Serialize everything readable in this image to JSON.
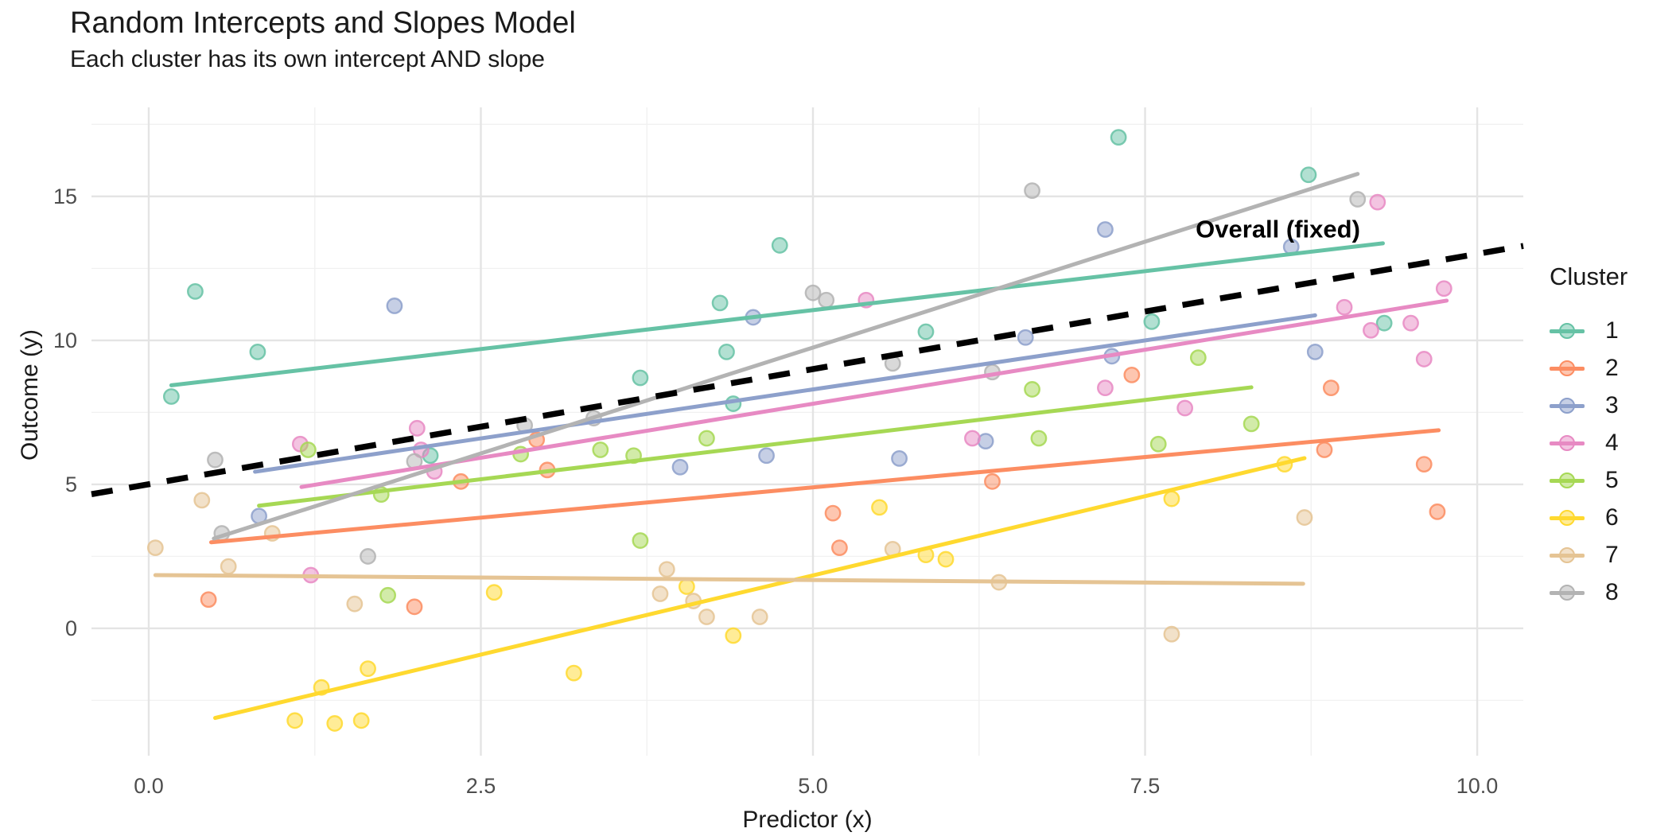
{
  "chart_data": {
    "type": "scatter",
    "title": "Random Intercepts and Slopes Model",
    "subtitle": "Each cluster has its own intercept AND slope",
    "xlabel": "Predictor (x)",
    "ylabel": "Outcome (y)",
    "xlim": [
      -0.431,
      10.347
    ],
    "ylim": [
      -4.42,
      18.09
    ],
    "grid": "on",
    "x_ticks": [
      0.0,
      2.5,
      5.0,
      7.5,
      10.0
    ],
    "x_tick_labels": [
      "0.0",
      "2.5",
      "5.0",
      "7.5",
      "10.0"
    ],
    "y_ticks": [
      0,
      5,
      10,
      15
    ],
    "y_tick_labels": [
      "0",
      "5",
      "10",
      "15"
    ],
    "x_minor_ticks": [
      1.25,
      3.75,
      6.25,
      8.75
    ],
    "y_minor_ticks": [
      -2.5,
      2.5,
      7.5,
      12.5,
      17.5
    ],
    "legend_title": "Cluster",
    "legend_position": "right",
    "annotation": {
      "text": "Overall (fixed)",
      "x": 8.5,
      "y": 13.85,
      "color": "#000000"
    },
    "overall_line": {
      "name": "Overall (fixed)",
      "color": "#000000",
      "style": "dashed",
      "x": [
        -0.431,
        10.347
      ],
      "y": [
        4.66,
        13.28
      ]
    },
    "series": [
      {
        "name": "1",
        "color": "#66C2A5",
        "line": {
          "x": [
            0.17,
            9.29
          ],
          "y": [
            8.44,
            13.37
          ]
        },
        "points": [
          [
            0.17,
            8.05
          ],
          [
            0.35,
            11.7
          ],
          [
            0.82,
            9.6
          ],
          [
            2.12,
            6.0
          ],
          [
            3.7,
            8.7
          ],
          [
            4.3,
            11.3
          ],
          [
            4.35,
            9.6
          ],
          [
            4.4,
            7.8
          ],
          [
            4.75,
            13.3
          ],
          [
            5.85,
            10.3
          ],
          [
            7.3,
            17.05
          ],
          [
            7.55,
            10.65
          ],
          [
            8.73,
            15.75
          ],
          [
            9.3,
            10.6
          ]
        ]
      },
      {
        "name": "2",
        "color": "#FC8D62",
        "line": {
          "x": [
            0.47,
            9.71
          ],
          "y": [
            2.99,
            6.88
          ]
        },
        "points": [
          [
            0.45,
            1.0
          ],
          [
            2.0,
            0.75
          ],
          [
            2.35,
            5.1
          ],
          [
            2.92,
            6.55
          ],
          [
            3.0,
            5.5
          ],
          [
            5.15,
            4.0
          ],
          [
            5.2,
            2.8
          ],
          [
            6.35,
            5.1
          ],
          [
            7.4,
            8.8
          ],
          [
            8.85,
            6.2
          ],
          [
            8.9,
            8.35
          ],
          [
            9.6,
            5.7
          ],
          [
            9.7,
            4.05
          ]
        ]
      },
      {
        "name": "3",
        "color": "#8DA0CB",
        "line": {
          "x": [
            0.8,
            8.78
          ],
          "y": [
            5.44,
            10.87
          ]
        },
        "points": [
          [
            0.83,
            3.9
          ],
          [
            1.85,
            11.2
          ],
          [
            4.0,
            5.6
          ],
          [
            4.55,
            10.8
          ],
          [
            4.65,
            6.0
          ],
          [
            5.65,
            5.9
          ],
          [
            6.3,
            6.5
          ],
          [
            6.6,
            10.1
          ],
          [
            7.2,
            13.85
          ],
          [
            7.25,
            9.45
          ],
          [
            8.6,
            13.25
          ],
          [
            8.78,
            9.6
          ]
        ]
      },
      {
        "name": "4",
        "color": "#E78AC3",
        "line": {
          "x": [
            1.15,
            9.77
          ],
          "y": [
            4.91,
            11.38
          ]
        },
        "points": [
          [
            1.14,
            6.4
          ],
          [
            1.22,
            1.85
          ],
          [
            2.02,
            6.95
          ],
          [
            2.05,
            6.2
          ],
          [
            2.15,
            5.45
          ],
          [
            5.4,
            11.4
          ],
          [
            6.2,
            6.6
          ],
          [
            7.2,
            8.35
          ],
          [
            7.8,
            7.65
          ],
          [
            9.0,
            11.15
          ],
          [
            9.2,
            10.35
          ],
          [
            9.25,
            14.8
          ],
          [
            9.5,
            10.6
          ],
          [
            9.6,
            9.35
          ],
          [
            9.75,
            11.8
          ]
        ]
      },
      {
        "name": "5",
        "color": "#A6D854",
        "line": {
          "x": [
            0.83,
            8.3
          ],
          "y": [
            4.26,
            8.37
          ]
        },
        "points": [
          [
            1.2,
            6.2
          ],
          [
            1.75,
            4.65
          ],
          [
            1.8,
            1.15
          ],
          [
            2.8,
            6.05
          ],
          [
            3.4,
            6.2
          ],
          [
            3.65,
            6.0
          ],
          [
            3.7,
            3.05
          ],
          [
            4.2,
            6.6
          ],
          [
            6.65,
            8.3
          ],
          [
            6.7,
            6.6
          ],
          [
            7.6,
            6.4
          ],
          [
            7.9,
            9.4
          ],
          [
            8.3,
            7.1
          ]
        ]
      },
      {
        "name": "6",
        "color": "#FFD92F",
        "line": {
          "x": [
            0.5,
            8.7
          ],
          "y": [
            -3.11,
            5.91
          ]
        },
        "points": [
          [
            1.1,
            -3.2
          ],
          [
            1.3,
            -2.05
          ],
          [
            1.4,
            -3.3
          ],
          [
            1.6,
            -3.2
          ],
          [
            1.65,
            -1.4
          ],
          [
            2.6,
            1.25
          ],
          [
            3.2,
            -1.55
          ],
          [
            4.05,
            1.45
          ],
          [
            4.4,
            -0.25
          ],
          [
            5.5,
            4.2
          ],
          [
            5.85,
            2.55
          ],
          [
            6.0,
            2.4
          ],
          [
            7.7,
            4.5
          ],
          [
            8.55,
            5.7
          ]
        ]
      },
      {
        "name": "7",
        "color": "#E5C494",
        "line": {
          "x": [
            0.05,
            8.69
          ],
          "y": [
            1.85,
            1.55
          ]
        },
        "points": [
          [
            0.05,
            2.8
          ],
          [
            0.4,
            4.45
          ],
          [
            0.6,
            2.15
          ],
          [
            0.93,
            3.3
          ],
          [
            1.55,
            0.85
          ],
          [
            3.85,
            1.2
          ],
          [
            3.9,
            2.05
          ],
          [
            4.1,
            0.95
          ],
          [
            4.2,
            0.4
          ],
          [
            4.6,
            0.4
          ],
          [
            5.6,
            2.75
          ],
          [
            6.4,
            1.6
          ],
          [
            7.7,
            -0.2
          ],
          [
            8.7,
            3.85
          ]
        ]
      },
      {
        "name": "8",
        "color": "#B3B3B3",
        "line": {
          "x": [
            0.49,
            9.1
          ],
          "y": [
            3.12,
            15.78
          ]
        },
        "points": [
          [
            0.5,
            5.85
          ],
          [
            0.55,
            3.3
          ],
          [
            1.65,
            2.5
          ],
          [
            2.0,
            5.8
          ],
          [
            2.83,
            7.05
          ],
          [
            3.35,
            7.3
          ],
          [
            5.0,
            11.65
          ],
          [
            5.1,
            11.4
          ],
          [
            5.6,
            9.2
          ],
          [
            6.35,
            8.9
          ],
          [
            6.65,
            15.2
          ],
          [
            9.1,
            14.9
          ]
        ]
      }
    ],
    "style": {
      "major_grid_color": "#E4E4E4",
      "minor_grid_color": "#F1F1F1",
      "tick_label_color": "#4D4D4D",
      "background": "#FFFFFF"
    }
  }
}
